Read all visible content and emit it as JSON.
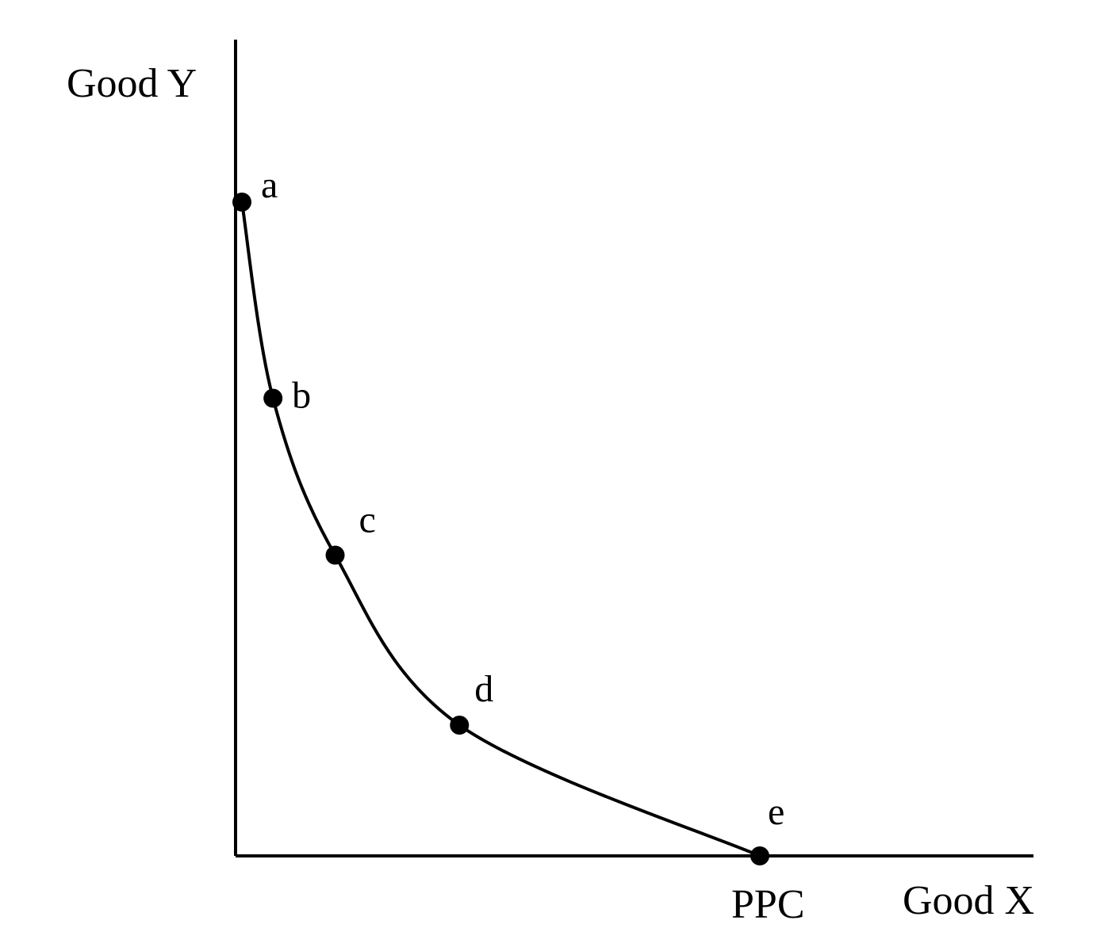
{
  "chart_data": {
    "type": "line",
    "xlabel": "Good X",
    "ylabel": "Good Y",
    "curve_label": "PPC",
    "colors": {
      "axis": "#000000",
      "curve": "#000000",
      "point": "#000000",
      "background": "#ffffff"
    },
    "series": [
      {
        "points": [
          {
            "label": "a",
            "x": 0.0,
            "y": 10.0
          },
          {
            "label": "b",
            "x": 0.6,
            "y": 7.0
          },
          {
            "label": "c",
            "x": 1.8,
            "y": 4.6
          },
          {
            "label": "d",
            "x": 4.2,
            "y": 2.0
          },
          {
            "label": "e",
            "x": 10.0,
            "y": 0.0
          }
        ]
      }
    ],
    "grid": false,
    "legend": "none"
  }
}
